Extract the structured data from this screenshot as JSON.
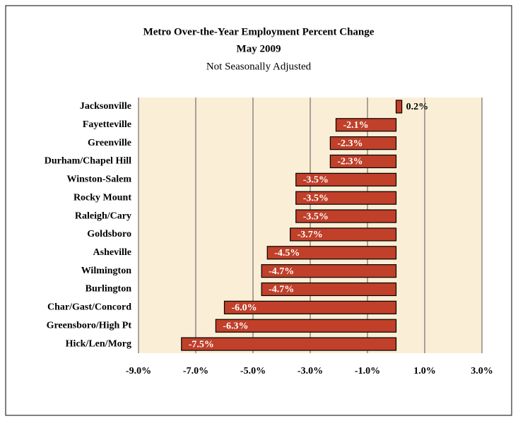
{
  "chart_data": {
    "type": "hbar",
    "title": "Metro Over-the-Year Employment Percent Change",
    "subtitle": "May 2009",
    "note": "Not Seasonally Adjusted",
    "categories": [
      "Jacksonville",
      "Fayetteville",
      "Greenville",
      "Durham/Chapel Hill",
      "Winston-Salem",
      "Rocky Mount",
      "Raleigh/Cary",
      "Goldsboro",
      "Asheville",
      "Wilmington",
      "Burlington",
      "Char/Gast/Concord",
      "Greensboro/High Pt",
      "Hick/Len/Morg"
    ],
    "values": [
      0.2,
      -2.1,
      -2.3,
      -2.3,
      -3.5,
      -3.5,
      -3.5,
      -3.7,
      -4.5,
      -4.7,
      -4.7,
      -6.0,
      -6.3,
      -7.5
    ],
    "value_labels": [
      "0.2%",
      "-2.1%",
      "-2.3%",
      "-2.3%",
      "-3.5%",
      "-3.5%",
      "-3.5%",
      "-3.7%",
      "-4.5%",
      "-4.7%",
      "-4.7%",
      "-6.0%",
      "-6.3%",
      "-7.5%"
    ],
    "color": "#c0402a",
    "xlim": [
      -9,
      3
    ],
    "xticks": [
      {
        "value": -9,
        "label": "-9.0%"
      },
      {
        "value": -7,
        "label": "-7.0%"
      },
      {
        "value": -5,
        "label": "-5.0%"
      },
      {
        "value": -3,
        "label": "-3.0%"
      },
      {
        "value": -1,
        "label": "-1.0%"
      },
      {
        "value": 1,
        "label": "1.0%"
      },
      {
        "value": 3,
        "label": "3.0%"
      }
    ],
    "grid": true
  }
}
